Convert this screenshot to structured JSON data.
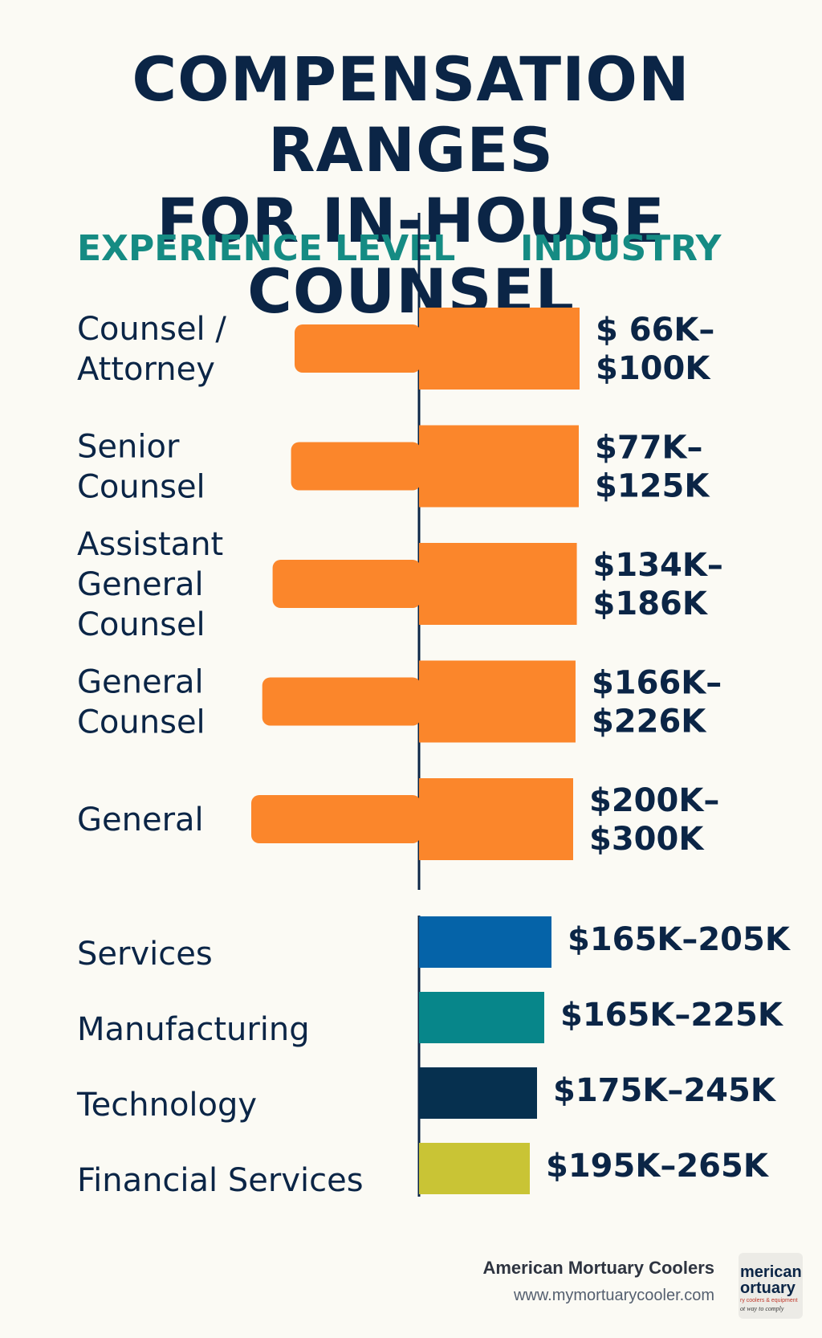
{
  "chart_data": {
    "type": "bar",
    "title_lines": [
      "COMPENSATION RANGES",
      "FOR IN-HOUSE COUNSEL"
    ],
    "left_heading": "EXPERIENCE LEVEL",
    "right_heading": "INDUSTRY",
    "experience_levels": [
      {
        "label_lines": [
          "Counsel /",
          "Attorney"
        ],
        "range_label_lines": [
          "$ 66K–",
          "$100K"
        ],
        "min": 66,
        "max": 100
      },
      {
        "label_lines": [
          "Senior",
          "Counsel"
        ],
        "range_label_lines": [
          "$77K–",
          "$125K"
        ],
        "min": 77,
        "max": 125
      },
      {
        "label_lines": [
          "Assistant",
          "General",
          "Counsel"
        ],
        "range_label_lines": [
          "$134K–",
          "$186K"
        ],
        "min": 134,
        "max": 186
      },
      {
        "label_lines": [
          "General",
          "Counsel"
        ],
        "range_label_lines": [
          "$166K–",
          "$226K"
        ],
        "min": 166,
        "max": 226
      },
      {
        "label_lines": [
          "General"
        ],
        "range_label_lines": [
          "$200K–",
          "$300K"
        ],
        "min": 200,
        "max": 300
      }
    ],
    "industries": [
      {
        "label": "Services",
        "range_label": "$165K–205K",
        "min": 165,
        "max": 205,
        "color": "#0563a8"
      },
      {
        "label": "Manufacturing",
        "range_label": "$165K–225K",
        "min": 165,
        "max": 225,
        "color": "#07868a"
      },
      {
        "label": "Technology",
        "range_label": "$175K–245K",
        "min": 175,
        "max": 245,
        "color": "#06304f"
      },
      {
        "label": "Financial Services",
        "range_label": "$195K–265K",
        "min": 195,
        "max": 265,
        "color": "#c9c435"
      }
    ],
    "colors": {
      "experience": "#fb862b",
      "axis": "#0b2546",
      "text": "#0b2546"
    }
  },
  "footer": {
    "company": "American Mortuary Coolers",
    "url": "www.mymortuarycooler.com",
    "logo_lines": [
      "merican",
      "ortuary",
      "ry coolers & equipment",
      "ot way to comply"
    ]
  }
}
